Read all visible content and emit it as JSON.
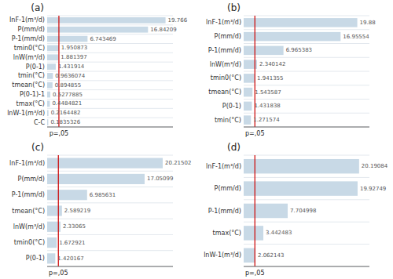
{
  "chart_data": [
    {
      "type": "bar",
      "orientation": "horizontal",
      "title": "(a)",
      "categories": [
        "InF-1(m³/d)",
        "P(mm/d)",
        "P-1(mm/d)",
        "tmin0(°C)",
        "lnW(m³/d)",
        "P(0-1)",
        "tmin(°C)",
        "tmean(°C)",
        "P(0-1)-1",
        "tmax(°C)",
        "lnW-1(m³/d)",
        "C-C"
      ],
      "values": [
        19.766,
        16.84209,
        6.743469,
        1.950873,
        1.881397,
        1.431914,
        0.9636074,
        0.894855,
        0.5277885,
        0.4484821,
        0.2164482,
        0.1835326
      ],
      "xlim": [
        0,
        21
      ],
      "color": "#c8d9e6",
      "data_labels": true,
      "tick_labels": "y",
      "grid": true,
      "annotations": [
        {
          "value": 1.96,
          "label": "p=,05",
          "color": "#cc0000"
        }
      ]
    },
    {
      "type": "bar",
      "orientation": "horizontal",
      "title": "(b)",
      "categories": [
        "lnF-1(m³/d)",
        "P(mm/d)",
        "P-1(mm/d)",
        "lnW(m³/d)",
        "tmin0(°C)",
        "tmean(°C)",
        "P(0-1)",
        "tmin(°C)"
      ],
      "values": [
        19.88,
        16.95554,
        6.965383,
        2.340142,
        1.941355,
        1.543587,
        1.431838,
        1.271574
      ],
      "xlim": [
        0,
        22
      ],
      "color": "#c8d9e6",
      "data_labels": true,
      "tick_labels": "y",
      "grid": true,
      "annotations": [
        {
          "value": 1.96,
          "label": "p=,05",
          "color": "#cc0000"
        }
      ]
    },
    {
      "type": "bar",
      "orientation": "horizontal",
      "title": "(c)",
      "categories": [
        "lnF-1(m³/d)",
        "P(mm/d)",
        "P-1(mm/d)",
        "tmean(°C)",
        "lnW(m³/d)",
        "tmin0(°C)",
        "P(0-1)"
      ],
      "values": [
        20.21502,
        17.05099,
        6.985631,
        2.589219,
        2.33065,
        1.672921,
        1.420167
      ],
      "xlim": [
        0,
        22
      ],
      "color": "#c8d9e6",
      "data_labels": true,
      "tick_labels": "y",
      "grid": true,
      "annotations": [
        {
          "value": 1.96,
          "label": "p=,05",
          "color": "#cc0000"
        }
      ]
    },
    {
      "type": "bar",
      "orientation": "horizontal",
      "title": "(d)",
      "categories": [
        "lnF-1(m³/d)",
        "P(mm/d)",
        "P-1(mm/d)",
        "tmax(°C)",
        "lnW-1(m³/d)"
      ],
      "values": [
        20.19084,
        19.92749,
        7.704998,
        3.442483,
        2.062143
      ],
      "xlim": [
        0,
        22
      ],
      "color": "#c8d9e6",
      "data_labels": true,
      "tick_labels": "y",
      "grid": true,
      "annotations": [
        {
          "value": 1.96,
          "label": "p=,05",
          "color": "#cc0000"
        }
      ]
    }
  ]
}
